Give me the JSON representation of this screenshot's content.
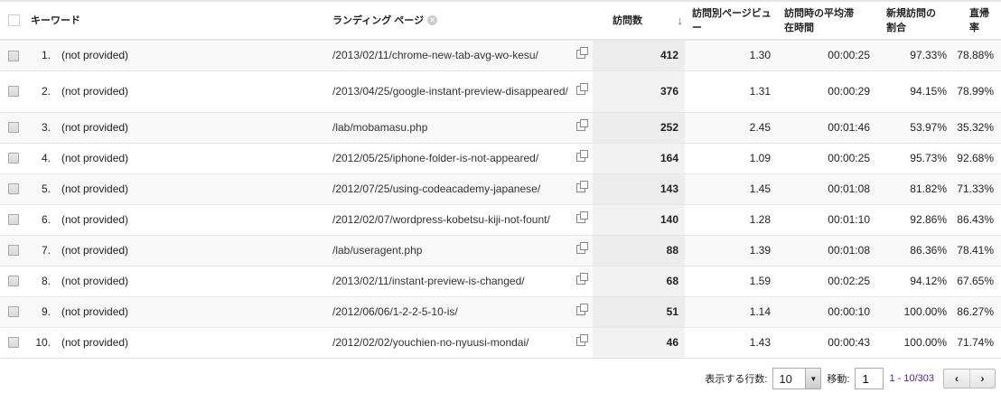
{
  "headers": {
    "keyword": "キーワード",
    "landing": "ランディング ページ",
    "visits": "訪問数",
    "sort_icon": "↓",
    "ppv": "訪問別ページビュー",
    "avg_time": "訪問時の平均滞在時間",
    "new_pct": "新規訪問の割合",
    "bounce": "直帰率"
  },
  "rows": [
    {
      "n": "1.",
      "kw": "(not provided)",
      "page": "/2013/02/11/chrome-new-tab-avg-wo-kesu/",
      "visits": "412",
      "ppv": "1.30",
      "time": "00:00:25",
      "new": "97.33%",
      "bounce": "78.88%"
    },
    {
      "n": "2.",
      "kw": "(not provided)",
      "page": "/2013/04/25/google-instant-preview-disappeared/",
      "visits": "376",
      "ppv": "1.31",
      "time": "00:00:29",
      "new": "94.15%",
      "bounce": "78.99%"
    },
    {
      "n": "3.",
      "kw": "(not provided)",
      "page": "/lab/mobamasu.php",
      "visits": "252",
      "ppv": "2.45",
      "time": "00:01:46",
      "new": "53.97%",
      "bounce": "35.32%"
    },
    {
      "n": "4.",
      "kw": "(not provided)",
      "page": "/2012/05/25/iphone-folder-is-not-appeared/",
      "visits": "164",
      "ppv": "1.09",
      "time": "00:00:25",
      "new": "95.73%",
      "bounce": "92.68%"
    },
    {
      "n": "5.",
      "kw": "(not provided)",
      "page": "/2012/07/25/using-codeacademy-japanese/",
      "visits": "143",
      "ppv": "1.45",
      "time": "00:01:08",
      "new": "81.82%",
      "bounce": "71.33%"
    },
    {
      "n": "6.",
      "kw": "(not provided)",
      "page": "/2012/02/07/wordpress-kobetsu-kiji-not-fount/",
      "visits": "140",
      "ppv": "1.28",
      "time": "00:01:10",
      "new": "92.86%",
      "bounce": "86.43%"
    },
    {
      "n": "7.",
      "kw": "(not provided)",
      "page": "/lab/useragent.php",
      "visits": "88",
      "ppv": "1.39",
      "time": "00:01:08",
      "new": "86.36%",
      "bounce": "78.41%"
    },
    {
      "n": "8.",
      "kw": "(not provided)",
      "page": "/2013/02/11/instant-preview-is-changed/",
      "visits": "68",
      "ppv": "1.59",
      "time": "00:02:25",
      "new": "94.12%",
      "bounce": "67.65%"
    },
    {
      "n": "9.",
      "kw": "(not provided)",
      "page": "/2012/06/06/1-2-2-5-10-is/",
      "visits": "51",
      "ppv": "1.14",
      "time": "00:00:10",
      "new": "100.00%",
      "bounce": "86.27%"
    },
    {
      "n": "10.",
      "kw": "(not provided)",
      "page": "/2012/02/02/youchien-no-nyuusi-mondai/",
      "visits": "46",
      "ppv": "1.43",
      "time": "00:00:43",
      "new": "100.00%",
      "bounce": "71.74%"
    }
  ],
  "footer": {
    "rows_label": "表示する行数:",
    "rows_value": "10",
    "goto_label": "移動:",
    "goto_value": "1",
    "range": "1 - 10/303",
    "prev": "‹",
    "next": "›"
  }
}
